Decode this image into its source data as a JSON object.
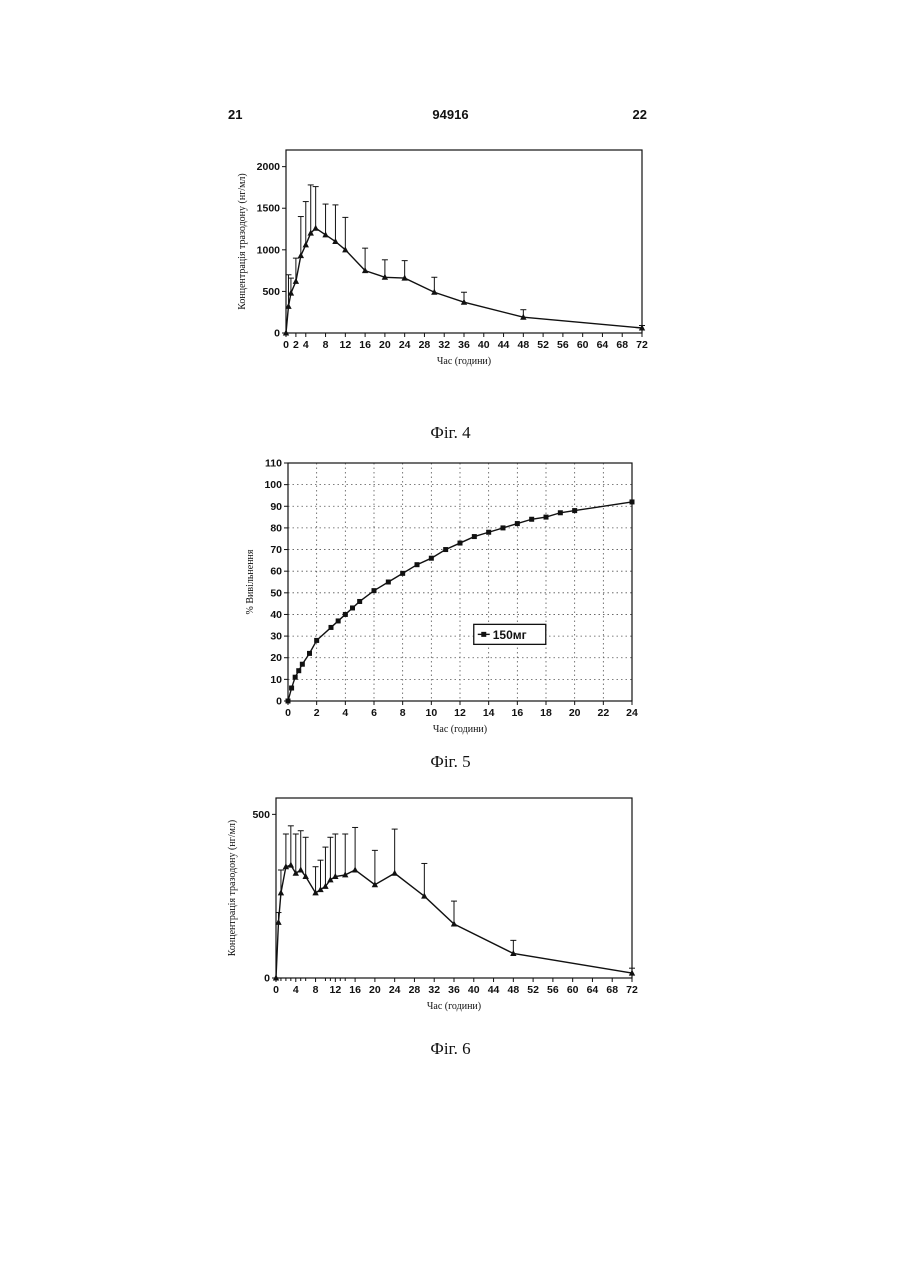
{
  "page": {
    "left_number": "21",
    "center_number": "94916",
    "right_number": "22"
  },
  "figures": [
    {
      "caption": "Фіг. 4"
    },
    {
      "caption": "Фіг. 5"
    },
    {
      "caption": "Фіг. 6"
    }
  ],
  "chart_data": [
    {
      "type": "line",
      "xlabel": "Час (години)",
      "ylabel": "Концентрація тразодону (нг/мл)",
      "xlim": [
        0,
        72
      ],
      "ylim": [
        0,
        2200
      ],
      "xticks": [
        0,
        2,
        4,
        8,
        12,
        16,
        20,
        24,
        28,
        32,
        36,
        40,
        44,
        48,
        52,
        56,
        60,
        64,
        68,
        72
      ],
      "yticks": [
        0,
        500,
        1000,
        1500,
        2000
      ],
      "marker": "triangle",
      "color": "#111111",
      "error_bars": true,
      "series": [
        {
          "x": [
            0,
            0.5,
            1,
            2,
            3,
            4,
            5,
            6,
            8,
            10,
            12,
            16,
            20,
            24,
            30,
            36,
            48,
            72
          ],
          "y": [
            0,
            320,
            480,
            620,
            930,
            1060,
            1200,
            1260,
            1180,
            1100,
            1000,
            750,
            670,
            660,
            490,
            370,
            190,
            60
          ],
          "err_upper": [
            0,
            700,
            660,
            900,
            1400,
            1580,
            1780,
            1760,
            1550,
            1540,
            1390,
            1020,
            880,
            870,
            670,
            490,
            280,
            90
          ]
        }
      ]
    },
    {
      "type": "line",
      "xlabel": "Час (години)",
      "ylabel": "% Вивільнення",
      "xlim": [
        0,
        24
      ],
      "ylim": [
        0,
        110
      ],
      "xticks": [
        0,
        2,
        4,
        6,
        8,
        10,
        12,
        14,
        16,
        18,
        20,
        22,
        24
      ],
      "yticks": [
        0,
        10,
        20,
        30,
        40,
        50,
        60,
        70,
        80,
        90,
        100,
        110
      ],
      "grid": true,
      "marker": "square",
      "color": "#111111",
      "legend_position": "center-right",
      "series": [
        {
          "name": "150мг",
          "x": [
            0,
            0.25,
            0.5,
            0.75,
            1,
            1.5,
            2,
            3,
            3.5,
            4,
            4.5,
            5,
            6,
            7,
            8,
            9,
            10,
            11,
            12,
            13,
            14,
            15,
            16,
            17,
            18,
            19,
            20,
            24
          ],
          "y": [
            0,
            6,
            11,
            14,
            17,
            22,
            28,
            34,
            37,
            40,
            43,
            46,
            51,
            55,
            59,
            63,
            66,
            70,
            73,
            76,
            78,
            80,
            82,
            84,
            85,
            87,
            88,
            92
          ]
        }
      ]
    },
    {
      "type": "line",
      "xlabel": "Час (години)",
      "ylabel": "Концентрація тразодону (нг/мл)",
      "xlim": [
        0,
        72
      ],
      "ylim": [
        0,
        550
      ],
      "xticks": [
        0,
        4,
        8,
        12,
        16,
        20,
        24,
        28,
        32,
        36,
        40,
        44,
        48,
        52,
        56,
        60,
        64,
        68,
        72
      ],
      "xtick_labels": [
        "0",
        "4",
        "8",
        "12",
        "16",
        "20",
        "24",
        "28",
        "32",
        "36",
        "40",
        "44",
        "48",
        "52",
        "56",
        "60",
        "64",
        "68",
        "72"
      ],
      "extra_xticks": [
        1,
        2,
        3,
        5,
        6,
        10,
        11,
        13,
        14
      ],
      "yticks": [
        0,
        500
      ],
      "marker": "triangle",
      "color": "#111111",
      "error_bars": true,
      "series": [
        {
          "x": [
            0,
            0.5,
            1,
            2,
            3,
            4,
            5,
            6,
            8,
            9,
            10,
            11,
            12,
            14,
            16,
            20,
            24,
            30,
            36,
            48,
            72
          ],
          "y": [
            0,
            170,
            260,
            340,
            345,
            320,
            330,
            310,
            260,
            270,
            280,
            300,
            310,
            315,
            330,
            285,
            320,
            250,
            165,
            75,
            15
          ],
          "err_upper": [
            0,
            200,
            330,
            440,
            465,
            440,
            450,
            430,
            340,
            360,
            400,
            430,
            440,
            440,
            460,
            390,
            455,
            350,
            235,
            115,
            30
          ]
        }
      ]
    }
  ]
}
